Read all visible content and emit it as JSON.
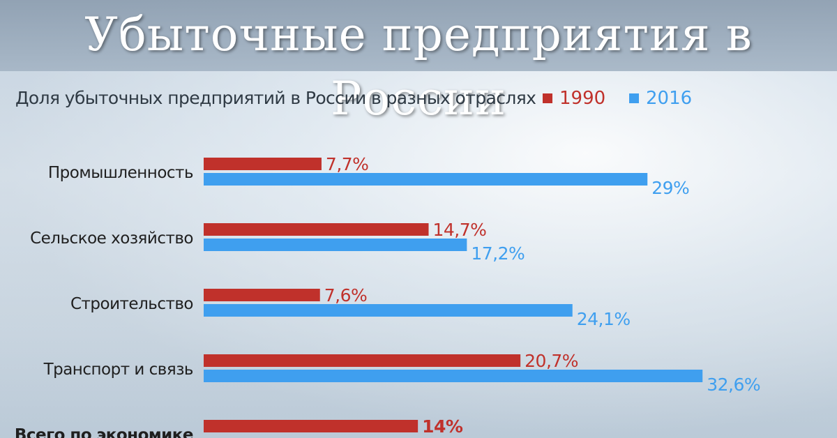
{
  "header": {
    "title": "Убыточные предприятия в России"
  },
  "chart_data": {
    "type": "bar",
    "orientation": "horizontal",
    "title": "Доля убыточных предприятий в России в разных отраслях",
    "categories": [
      "Промышленность",
      "Сельское хозяйство",
      "Строительство",
      "Транспорт и связь",
      "Всего по экономике"
    ],
    "series": [
      {
        "name": "1990",
        "color": "#c0312b",
        "values": [
          7.7,
          14.7,
          7.6,
          20.7,
          14
        ],
        "labels": [
          "7,7%",
          "14,7%",
          "7,6%",
          "20,7%",
          "14%"
        ]
      },
      {
        "name": "2016",
        "color": "#3f9fef",
        "values": [
          29,
          17.2,
          24.1,
          32.6,
          null
        ],
        "labels": [
          "29%",
          "17,2%",
          "24,1%",
          "32,6%",
          ""
        ]
      }
    ],
    "xlim": [
      0,
      33
    ],
    "legend": "top-right",
    "grid": false
  }
}
